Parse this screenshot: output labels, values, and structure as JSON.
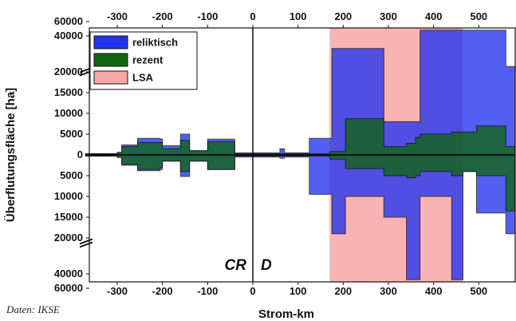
{
  "chart_data": {
    "type": "area",
    "xlabel": "Strom-km",
    "ylabel": "Überflutungsfläche [ha]",
    "source": "Daten: IKSE",
    "country_labels": [
      "CR",
      "D"
    ],
    "x_ticks": [
      -300,
      -200,
      -100,
      0,
      100,
      200,
      300,
      400,
      500
    ],
    "y_ticks_upper": [
      60000,
      40000,
      20000,
      15000,
      10000,
      5000,
      0
    ],
    "y_ticks_lower": [
      5000,
      10000,
      15000,
      20000,
      40000,
      60000
    ],
    "xlim": [
      -370,
      580
    ],
    "axis_break": true,
    "legend": [
      {
        "label": "reliktisch",
        "color": "#2233ee"
      },
      {
        "label": "rezent",
        "color": "#116611"
      },
      {
        "label": "LSA",
        "color": "#f7a7a7"
      }
    ],
    "lsa_range": [
      170,
      465
    ],
    "series": [
      {
        "name": "reliktisch",
        "color": "#2233ee",
        "x": [
          -370,
          -300,
          -290,
          -255,
          -205,
          -200,
          -160,
          -150,
          -140,
          -100,
          -50,
          -40,
          60,
          70,
          125,
          170,
          175,
          205,
          290,
          340,
          360,
          370,
          440,
          465,
          495,
          560,
          575,
          580
        ],
        "above_left": [
          300,
          600,
          2400,
          4000,
          3800,
          2200,
          5000,
          5000,
          1000,
          3800,
          3800,
          500,
          1500,
          500,
          4000,
          4000,
          33000,
          33000,
          8000,
          8000,
          8000,
          48000,
          48000,
          48000,
          48000,
          23000,
          23000,
          23000
        ],
        "below_left": [
          -300,
          -600,
          -2500,
          -3800,
          -3500,
          -1500,
          -5200,
          -5200,
          -1500,
          -3500,
          -3500,
          -500,
          -800,
          -500,
          -9500,
          -9500,
          -19000,
          -10000,
          -15000,
          -48000,
          -48000,
          -10000,
          -48000,
          -4000,
          -14000,
          -19000,
          -19000,
          -19000
        ]
      },
      {
        "name": "rezent",
        "color": "#116611",
        "x": [
          -370,
          -300,
          -290,
          -255,
          -205,
          -200,
          -160,
          -150,
          -140,
          -100,
          -50,
          -40,
          170,
          205,
          290,
          340,
          360,
          370,
          440,
          465,
          495,
          560,
          575,
          580
        ],
        "above_left": [
          300,
          600,
          2000,
          3000,
          3000,
          1500,
          3500,
          3500,
          1000,
          3200,
          3200,
          300,
          800,
          8700,
          2000,
          2800,
          4200,
          5000,
          5500,
          5500,
          7000,
          2000,
          2000,
          2000
        ],
        "below_left": [
          -300,
          -600,
          -2200,
          -3500,
          -3000,
          -1500,
          -4000,
          -4000,
          -1500,
          -3500,
          -3500,
          -300,
          -1000,
          -3300,
          -5000,
          -5500,
          -5000,
          -4000,
          -5000,
          -4000,
          -5000,
          -13500,
          -13500,
          -13500
        ]
      }
    ]
  }
}
